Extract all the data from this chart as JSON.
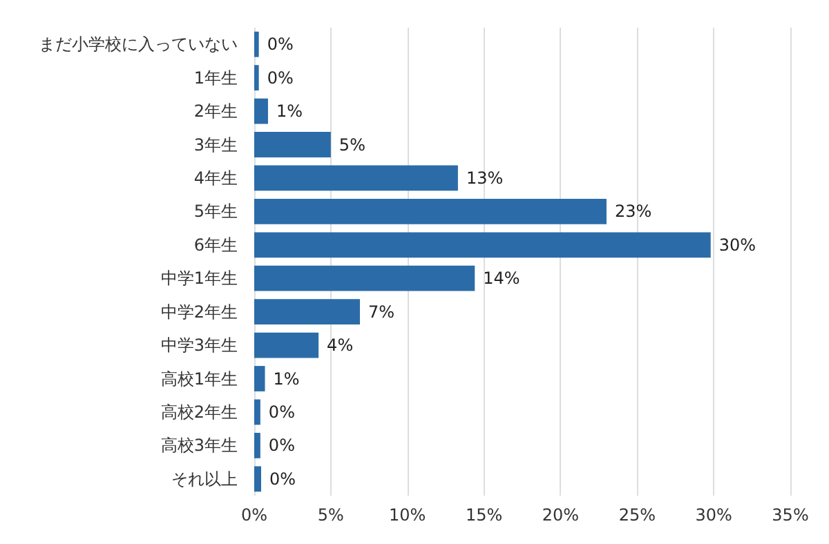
{
  "chart_data": {
    "type": "bar",
    "orientation": "horizontal",
    "categories": [
      "まだ小学校に入っていない",
      "1年生",
      "2年生",
      "3年生",
      "4年生",
      "5年生",
      "6年生",
      "中学1年生",
      "中学2年生",
      "中学3年生",
      "高校1年生",
      "高校2年生",
      "高校3年生",
      "それ以上"
    ],
    "values": [
      0.3,
      0.3,
      0.9,
      5.0,
      13.3,
      23.0,
      29.8,
      14.4,
      6.9,
      4.2,
      0.7,
      0.4,
      0.4,
      0.45
    ],
    "value_labels": [
      "0%",
      "0%",
      "1%",
      "5%",
      "13%",
      "23%",
      "30%",
      "14%",
      "7%",
      "4%",
      "1%",
      "0%",
      "0%",
      "0%"
    ],
    "color": "#2b6ca8",
    "xlim": [
      0,
      35
    ],
    "xticks": [
      {
        "value": 0,
        "label": "0%"
      },
      {
        "value": 5,
        "label": "5%"
      },
      {
        "value": 10,
        "label": "10%"
      },
      {
        "value": 15,
        "label": "15%"
      },
      {
        "value": 20,
        "label": "20%"
      },
      {
        "value": 25,
        "label": "25%"
      },
      {
        "value": 30,
        "label": "30%"
      },
      {
        "value": 35,
        "label": "35%"
      }
    ],
    "grid": "x"
  }
}
